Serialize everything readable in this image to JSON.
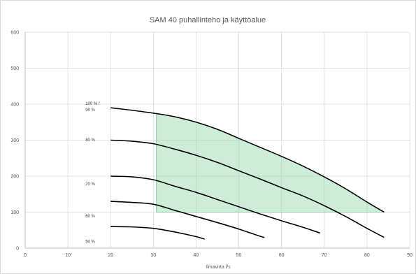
{
  "chart_data": {
    "type": "line",
    "title": "SAM 40 puhallinteho ja käyttöalue",
    "xlabel": "Ilmavirta l/s",
    "ylabel": "",
    "xlim": [
      0,
      90
    ],
    "ylim": [
      0,
      600
    ],
    "xticks": [
      0,
      10,
      20,
      30,
      40,
      50,
      60,
      70,
      80,
      90
    ],
    "yticks": [
      0,
      100,
      200,
      300,
      400,
      500,
      600
    ],
    "grid": true,
    "legend": "none",
    "series": [
      {
        "label_lines": [
          "100 % /",
          "90 %"
        ],
        "label_at": [
          20,
          398
        ],
        "color": "#000000",
        "points": [
          [
            20,
            390
          ],
          [
            25,
            383
          ],
          [
            30,
            375
          ],
          [
            35,
            365
          ],
          [
            40,
            350
          ],
          [
            45,
            330
          ],
          [
            50,
            305
          ],
          [
            55,
            280
          ],
          [
            60,
            255
          ],
          [
            65,
            228
          ],
          [
            70,
            198
          ],
          [
            75,
            165
          ],
          [
            80,
            128
          ],
          [
            84,
            100
          ]
        ]
      },
      {
        "label_lines": [
          "80 %"
        ],
        "label_at": [
          20,
          297
        ],
        "color": "#000000",
        "points": [
          [
            20,
            300
          ],
          [
            25,
            297
          ],
          [
            30,
            290
          ],
          [
            35,
            275
          ],
          [
            40,
            258
          ],
          [
            45,
            238
          ],
          [
            50,
            215
          ],
          [
            55,
            192
          ],
          [
            60,
            168
          ],
          [
            65,
            145
          ],
          [
            70,
            118
          ],
          [
            75,
            88
          ],
          [
            80,
            55
          ],
          [
            84,
            30
          ]
        ]
      },
      {
        "label_lines": [
          "70 %"
        ],
        "label_at": [
          20,
          175
        ],
        "color": "#000000",
        "points": [
          [
            20,
            200
          ],
          [
            25,
            198
          ],
          [
            30,
            190
          ],
          [
            35,
            172
          ],
          [
            40,
            155
          ],
          [
            45,
            135
          ],
          [
            50,
            115
          ],
          [
            55,
            95
          ],
          [
            60,
            76
          ],
          [
            65,
            58
          ],
          [
            69,
            42
          ]
        ]
      },
      {
        "label_lines": [
          "60 %"
        ],
        "label_at": [
          20,
          85
        ],
        "color": "#000000",
        "points": [
          [
            20,
            130
          ],
          [
            25,
            127
          ],
          [
            30,
            122
          ],
          [
            35,
            105
          ],
          [
            40,
            88
          ],
          [
            45,
            71
          ],
          [
            50,
            53
          ],
          [
            55,
            33
          ],
          [
            56,
            30
          ]
        ]
      },
      {
        "label_lines": [
          "50 %"
        ],
        "label_at": [
          20,
          15
        ],
        "color": "#000000",
        "points": [
          [
            20,
            60
          ],
          [
            25,
            59
          ],
          [
            30,
            55
          ],
          [
            35,
            45
          ],
          [
            40,
            32
          ],
          [
            42,
            25
          ]
        ]
      }
    ],
    "operating_area": {
      "color": "#92d8a9",
      "edge_color": "#78c391",
      "opacity": 0.45,
      "polygon": [
        [
          30.7,
          375
        ],
        [
          35,
          365
        ],
        [
          40,
          350
        ],
        [
          45,
          330
        ],
        [
          50,
          305
        ],
        [
          55,
          280
        ],
        [
          60,
          255
        ],
        [
          65,
          228
        ],
        [
          70,
          198
        ],
        [
          75,
          165
        ],
        [
          80,
          128
        ],
        [
          84,
          100
        ],
        [
          30.7,
          100
        ]
      ]
    }
  }
}
